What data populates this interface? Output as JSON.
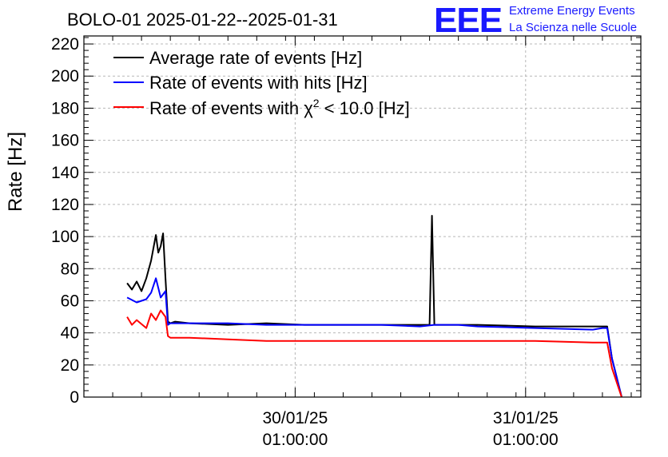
{
  "header": {
    "title": "BOLO-01 2025-01-22--2025-01-31",
    "logo_mark": "EEE",
    "logo_line1": "Extreme Energy Events",
    "logo_line2": "La Scienza nelle Scuole"
  },
  "legend": {
    "chi_prefix": "Rate of events with ",
    "chi_symbol": "χ",
    "chi_sup": "2",
    "chi_suffix": " < 10.0 [Hz]"
  },
  "colors": {
    "average": "#000000",
    "hits": "#0000ff",
    "chi2": "#ff0000",
    "logo": "#1a1aff"
  },
  "chart_data": {
    "type": "line",
    "title": "BOLO-01 2025-01-22--2025-01-31",
    "ylabel": "Rate [Hz]",
    "xlabel": "",
    "ylim": [
      0,
      225
    ],
    "xlim": [
      "29/01/25 03:00:00",
      "31/01/25 13:00:00"
    ],
    "x_ticks": [
      {
        "label_date": "30/01/25",
        "label_time": "01:00:00",
        "x": "30/01/25 01:00:00"
      },
      {
        "label_date": "31/01/25",
        "label_time": "01:00:00",
        "x": "31/01/25 01:00:00"
      }
    ],
    "y_ticks": [
      0,
      20,
      40,
      60,
      80,
      100,
      120,
      140,
      160,
      180,
      200,
      220
    ],
    "grid": true,
    "legend_position": "top-left",
    "series": [
      {
        "name": "Average rate of events [Hz]",
        "color": "#000000",
        "x": [
          "29/01/25 07:30:00",
          "29/01/25 08:00:00",
          "29/01/25 08:30:00",
          "29/01/25 09:00:00",
          "29/01/25 09:30:00",
          "29/01/25 10:00:00",
          "29/01/25 10:30:00",
          "29/01/25 10:45:00",
          "29/01/25 11:00:00",
          "29/01/25 11:15:00",
          "29/01/25 11:30:00",
          "29/01/25 11:45:00",
          "29/01/25 12:00:00",
          "29/01/25 12:30:00",
          "29/01/25 14:00:00",
          "29/01/25 18:00:00",
          "29/01/25 22:00:00",
          "30/01/25 02:00:00",
          "30/01/25 06:00:00",
          "30/01/25 10:00:00",
          "30/01/25 14:00:00",
          "30/01/25 15:00:00",
          "30/01/25 15:15:00",
          "30/01/25 15:30:00",
          "30/01/25 17:00:00",
          "30/01/25 18:00:00",
          "30/01/25 20:00:00",
          "31/01/25 02:00:00",
          "31/01/25 08:00:00",
          "31/01/25 09:00:00",
          "31/01/25 09:30:00",
          "31/01/25 10:00:00",
          "31/01/25 11:00:00"
        ],
        "values": [
          71,
          67,
          72,
          66,
          74,
          85,
          101,
          90,
          94,
          102,
          74,
          47,
          46,
          47,
          46,
          45,
          46,
          45,
          45,
          45,
          45,
          45,
          113,
          45,
          45,
          45,
          45,
          44,
          44,
          44,
          44,
          24,
          0
        ]
      },
      {
        "name": "Rate of events with hits [Hz]",
        "color": "#0000ff",
        "x": [
          "29/01/25 07:30:00",
          "29/01/25 08:30:00",
          "29/01/25 09:30:00",
          "29/01/25 10:00:00",
          "29/01/25 10:30:00",
          "29/01/25 11:00:00",
          "29/01/25 11:30:00",
          "29/01/25 11:45:00",
          "29/01/25 12:00:00",
          "29/01/25 14:00:00",
          "29/01/25 18:00:00",
          "29/01/25 22:00:00",
          "30/01/25 02:00:00",
          "30/01/25 06:00:00",
          "30/01/25 10:00:00",
          "30/01/25 14:00:00",
          "30/01/25 15:30:00",
          "30/01/25 17:00:00",
          "30/01/25 18:00:00",
          "30/01/25 20:00:00",
          "31/01/25 02:00:00",
          "31/01/25 08:00:00",
          "31/01/25 09:00:00",
          "31/01/25 09:30:00",
          "31/01/25 10:00:00",
          "31/01/25 11:00:00"
        ],
        "values": [
          62,
          59,
          61,
          65,
          74,
          62,
          66,
          45,
          46,
          46,
          46,
          45,
          45,
          45,
          45,
          44,
          45,
          45,
          45,
          44,
          43,
          42,
          43,
          43,
          24,
          0
        ]
      },
      {
        "name": "Rate of events with χ2 < 10.0 [Hz]",
        "color": "#ff0000",
        "x": [
          "29/01/25 07:30:00",
          "29/01/25 08:00:00",
          "29/01/25 08:30:00",
          "29/01/25 09:30:00",
          "29/01/25 10:00:00",
          "29/01/25 10:30:00",
          "29/01/25 11:00:00",
          "29/01/25 11:30:00",
          "29/01/25 11:45:00",
          "29/01/25 12:00:00",
          "29/01/25 14:00:00",
          "29/01/25 18:00:00",
          "29/01/25 22:00:00",
          "30/01/25 02:00:00",
          "30/01/25 06:00:00",
          "30/01/25 10:00:00",
          "30/01/25 14:00:00",
          "30/01/25 15:30:00",
          "30/01/25 17:00:00",
          "30/01/25 18:00:00",
          "30/01/25 20:00:00",
          "31/01/25 02:00:00",
          "31/01/25 08:00:00",
          "31/01/25 09:00:00",
          "31/01/25 09:30:00",
          "31/01/25 10:00:00",
          "31/01/25 11:00:00"
        ],
        "values": [
          50,
          45,
          48,
          43,
          52,
          48,
          54,
          50,
          38,
          37,
          37,
          36,
          35,
          35,
          35,
          35,
          35,
          35,
          35,
          35,
          35,
          35,
          34,
          34,
          34,
          18,
          0
        ]
      }
    ]
  }
}
